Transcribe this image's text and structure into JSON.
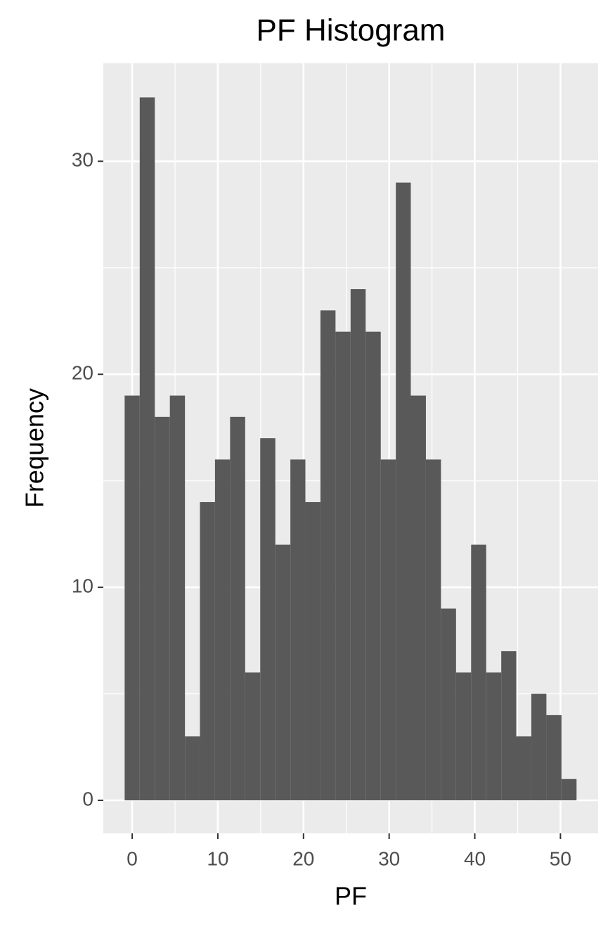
{
  "chart_data": {
    "type": "histogram",
    "title": "PF Histogram",
    "x_label": "PF",
    "y_label": "Frequency",
    "bins": [
      -0.88,
      0.88,
      2.64,
      4.4,
      6.16,
      7.91,
      9.67,
      11.43,
      13.19,
      14.95,
      16.71,
      18.47,
      20.22,
      21.98,
      23.74,
      25.5,
      27.26,
      29.02,
      30.78,
      32.53,
      34.29,
      36.05,
      37.81,
      39.57,
      41.33,
      43.09,
      44.84,
      46.6,
      48.36,
      50.12,
      51.88
    ],
    "values": [
      19,
      33,
      18,
      19,
      3,
      14,
      16,
      18,
      6,
      17,
      12,
      16,
      14,
      23,
      22,
      24,
      22,
      16,
      29,
      19,
      16,
      9,
      6,
      12,
      6,
      7,
      3,
      5,
      4,
      1
    ],
    "color": "#595959",
    "xlim": [
      -3.37,
      54.4
    ],
    "ylim": [
      -1.55,
      34.6
    ],
    "xticks": [
      0,
      10,
      20,
      30,
      40,
      50
    ],
    "yticks": [
      0,
      10,
      20,
      30
    ],
    "xminor": [
      5,
      15,
      25,
      35,
      45
    ],
    "yminor": [
      5,
      15,
      25
    ],
    "grid": true
  }
}
